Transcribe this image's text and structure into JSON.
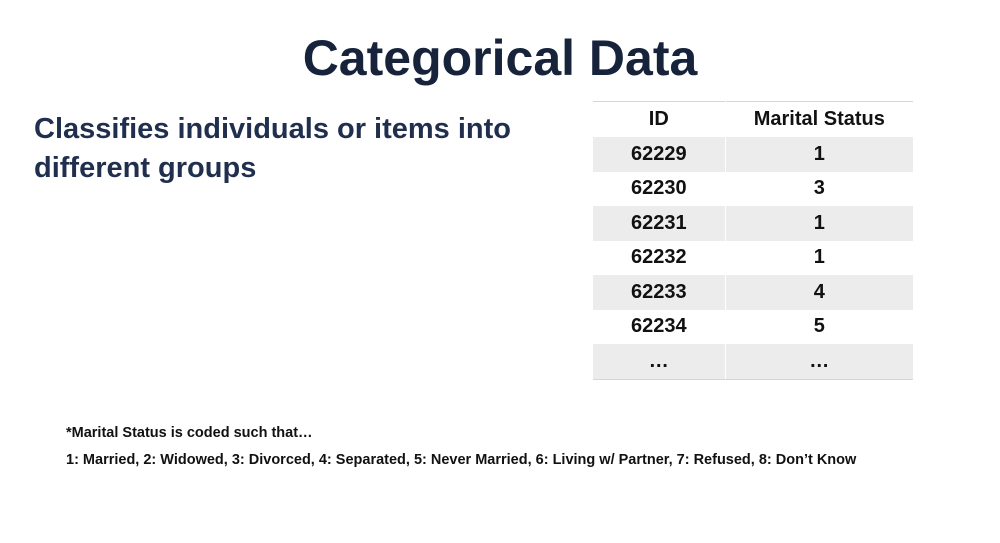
{
  "slide": {
    "title": "Categorical Data",
    "bullet": "Classifies individuals or items into different groups"
  },
  "table": {
    "headers": [
      "ID",
      "Marital Status"
    ],
    "rows": [
      [
        "62229",
        "1"
      ],
      [
        "62230",
        "3"
      ],
      [
        "62231",
        "1"
      ],
      [
        "62232",
        "1"
      ],
      [
        "62233",
        "4"
      ],
      [
        "62234",
        "5"
      ],
      [
        "…",
        "…"
      ]
    ]
  },
  "footnote": {
    "line1": "*Marital Status is coded such that…",
    "line2": "1: Married, 2: Widowed, 3: Divorced, 4: Separated, 5: Never Married, 6: Living w/ Partner, 7: Refused, 8: Don’t Know"
  }
}
